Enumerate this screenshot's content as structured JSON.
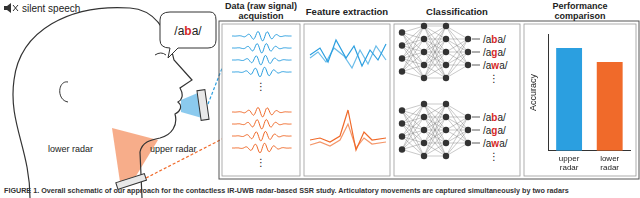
{
  "header": {
    "mute_label": "silent speech",
    "utterance": "/aba/"
  },
  "radars": [
    {
      "label": "upper radar",
      "color": "#2b9fe0"
    },
    {
      "label": "lower radar",
      "color": "#f06a2a"
    }
  ],
  "stages": [
    [
      "Data (raw signal)",
      "acquistion"
    ],
    [
      "Feature extraction"
    ],
    [
      "Classification"
    ],
    [
      "Performance",
      "comparison"
    ]
  ],
  "classes": [
    "/aba/",
    "/aga/",
    "/awa/"
  ],
  "more": "⋮",
  "caption": "FIGURE 1. Overall schematic of our approach for the contactless IR-UWB radar-based SSR study. Articulatory movements are captured simultaneously by two radars",
  "chart_data": {
    "type": "bar",
    "categories": [
      "upper radar",
      "lower radar"
    ],
    "values": [
      88,
      76
    ],
    "colors": [
      "#2b9fe0",
      "#f06a2a"
    ],
    "y_label": "Accuracy",
    "ylim": [
      0,
      100
    ],
    "tick_labels": "x",
    "grid": false
  }
}
